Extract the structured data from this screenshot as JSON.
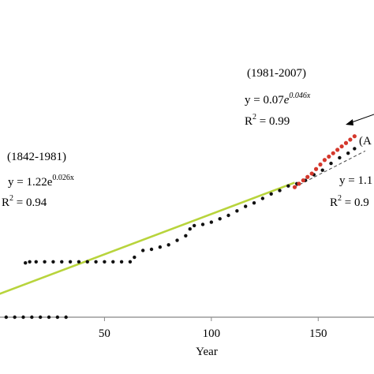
{
  "chart_data": {
    "type": "scatter",
    "title": "",
    "xlabel": "Year",
    "ylabel": "",
    "xlim": [
      0,
      175
    ],
    "ylim": [
      0,
      12
    ],
    "x_ticks": [
      {
        "value": 50,
        "label": "50"
      },
      {
        "value": 100,
        "label": "100"
      },
      {
        "value": 150,
        "label": "150"
      }
    ],
    "grid": false,
    "series": [
      {
        "color": "#111111",
        "points": [
          [
            0,
            0
          ],
          [
            4,
            0
          ],
          [
            8,
            0
          ],
          [
            12,
            0
          ],
          [
            16,
            0
          ],
          [
            20,
            0
          ],
          [
            24,
            0
          ],
          [
            28,
            0
          ],
          [
            32,
            0
          ],
          [
            13,
            2.4
          ],
          [
            15,
            2.45
          ],
          [
            18,
            2.45
          ],
          [
            22,
            2.45
          ],
          [
            26,
            2.45
          ],
          [
            30,
            2.45
          ],
          [
            34,
            2.45
          ],
          [
            38,
            2.45
          ],
          [
            42,
            2.45
          ],
          [
            46,
            2.45
          ],
          [
            50,
            2.45
          ],
          [
            54,
            2.45
          ],
          [
            58,
            2.45
          ],
          [
            62,
            2.45
          ],
          [
            64,
            2.65
          ],
          [
            68,
            2.95
          ],
          [
            72,
            3.0
          ],
          [
            76,
            3.1
          ],
          [
            80,
            3.2
          ],
          [
            84,
            3.4
          ],
          [
            88,
            3.6
          ],
          [
            90,
            3.9
          ],
          [
            92,
            4.05
          ],
          [
            96,
            4.1
          ],
          [
            100,
            4.2
          ],
          [
            104,
            4.35
          ],
          [
            108,
            4.5
          ],
          [
            112,
            4.7
          ],
          [
            116,
            4.9
          ],
          [
            120,
            5.05
          ],
          [
            124,
            5.25
          ],
          [
            128,
            5.45
          ],
          [
            132,
            5.6
          ],
          [
            136,
            5.8
          ],
          [
            140,
            5.9
          ],
          [
            144,
            6.05
          ],
          [
            148,
            6.3
          ],
          [
            152,
            6.5
          ],
          [
            156,
            6.8
          ],
          [
            160,
            7.05
          ],
          [
            164,
            7.25
          ],
          [
            167,
            7.45
          ]
        ]
      },
      {
        "color": "#d4382c",
        "points": [
          [
            139,
            5.75
          ],
          [
            141,
            5.9
          ],
          [
            143,
            6.05
          ],
          [
            145,
            6.2
          ],
          [
            147,
            6.35
          ],
          [
            149,
            6.55
          ],
          [
            151,
            6.75
          ],
          [
            153,
            6.95
          ],
          [
            155,
            7.1
          ],
          [
            157,
            7.25
          ],
          [
            159,
            7.4
          ],
          [
            161,
            7.55
          ],
          [
            163,
            7.7
          ],
          [
            165,
            7.85
          ],
          [
            167,
            8.0
          ]
        ]
      }
    ],
    "trendlines": [
      {
        "color": "#b8d43c",
        "x": [
          0,
          139
        ],
        "y": [
          1.0,
          5.95
        ]
      },
      {
        "color": "#444444",
        "style": "dashed",
        "x": [
          139,
          172
        ],
        "y": [
          5.75,
          7.35
        ]
      }
    ],
    "annotations": [
      {
        "period": "(1842-1981)",
        "equation_prefix": "y = 1.22e",
        "exponent": "0.026x",
        "r2_label": "R",
        "r2_power": "2",
        "r2_value": " = 0.94"
      },
      {
        "period": "(1981-2007)",
        "equation_prefix": "y = 0.07",
        "equation_e": "e",
        "exponent": "0.046x",
        "r2_label": "R",
        "r2_power": "2",
        "r2_value": " = 0.99"
      },
      {
        "equation_prefix": "y = 1.1",
        "r2_label": "R",
        "r2_power": "2",
        "r2_value": " = 0.9"
      },
      {
        "arrow_label": "(A"
      }
    ]
  }
}
